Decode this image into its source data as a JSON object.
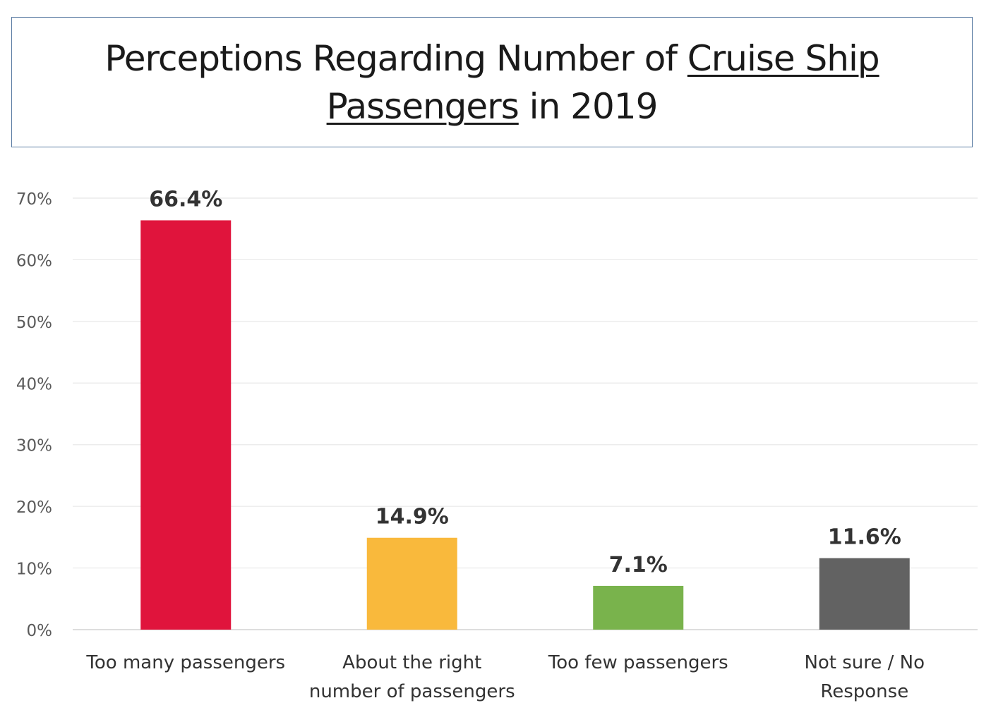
{
  "title": {
    "line1_plain": "Perceptions Regarding Number of ",
    "line1_underlined": "Cruise Ship",
    "line2_underlined": "Passengers",
    "line2_plain": " in 2019"
  },
  "colors": {
    "too_many": "#e0143c",
    "about_right": "#f9b93c",
    "too_few": "#79b34c",
    "not_sure": "#626262",
    "gridline": "#e8e8e8",
    "axis_text": "#5a5a5a",
    "label_text": "#333333"
  },
  "chart_data": {
    "type": "bar",
    "title": "Perceptions Regarding Number of Cruise Ship Passengers in 2019",
    "categories": [
      [
        "Too many passengers"
      ],
      [
        "About the right",
        "number of passengers"
      ],
      [
        "Too few passengers"
      ],
      [
        "Not sure / No",
        "Response"
      ]
    ],
    "values": [
      66.4,
      14.9,
      7.1,
      11.6
    ],
    "data_labels": [
      "66.4%",
      "14.9%",
      "7.1%",
      "11.6%"
    ],
    "bar_colors": [
      "#e0143c",
      "#f9b93c",
      "#79b34c",
      "#626262"
    ],
    "yticks": [
      0,
      10,
      20,
      30,
      40,
      50,
      60,
      70
    ],
    "ytick_labels": [
      "0%",
      "10%",
      "20%",
      "30%",
      "40%",
      "50%",
      "60%",
      "70%"
    ],
    "ylim": [
      0,
      70
    ],
    "xlabel": "",
    "ylabel": "",
    "grid": true,
    "legend": "none"
  }
}
